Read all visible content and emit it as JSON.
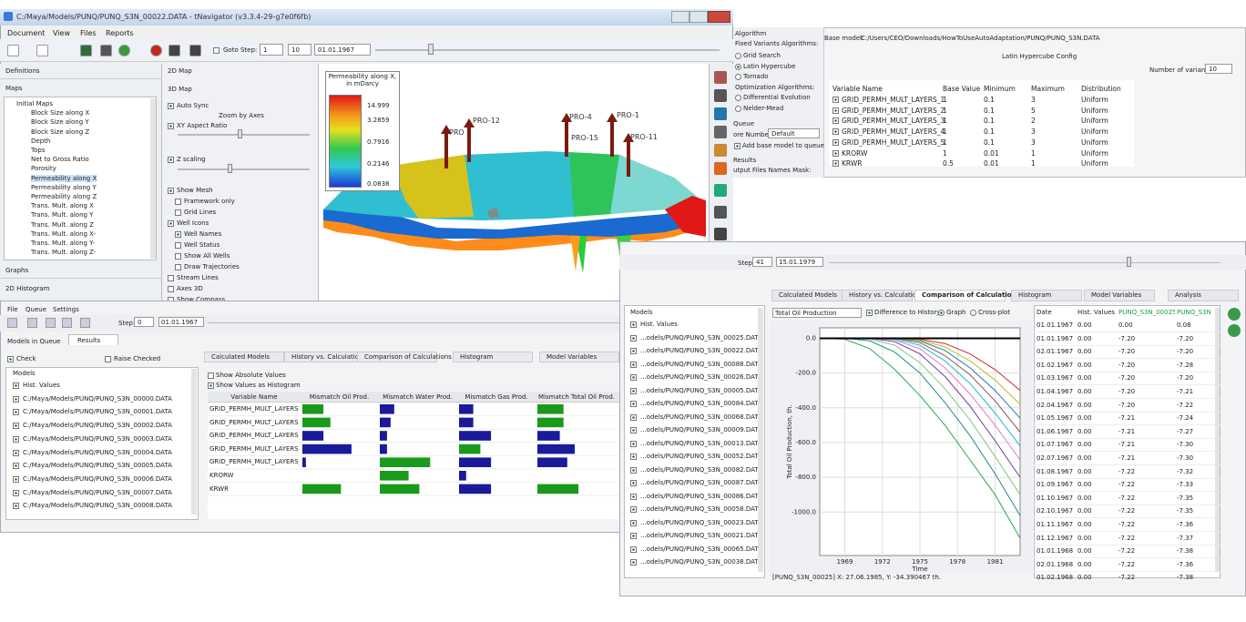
{
  "nav_window": {
    "title": "C:/Maya/Models/PUNQ/PUNQ_S3N_00022.DATA - tNavigator (v3.3.4-29-g7e0f6fb)",
    "menu": [
      "Document",
      "View",
      "Files",
      "Reports"
    ],
    "goto_step_label": "Goto Step:",
    "step": "1",
    "step_total": "10",
    "date": "01.01.1967",
    "left_tabs": [
      "Definitions",
      "Maps"
    ],
    "maps_tree": [
      "Initial Maps",
      "Block Size along X",
      "Block Size along Y",
      "Block Size along Z",
      "Depth",
      "Tops",
      "Net to Gross Ratio",
      "Porosity",
      "Permeability along X",
      "Permeability along Y",
      "Permeability along Z",
      "Trans. Mult. along X",
      "Trans. Mult. along Y",
      "Trans. Mult. along Z",
      "Trans. Mult. along X-",
      "Trans. Mult. along Y-",
      "Trans. Mult. along Z-"
    ],
    "bottom_tabs": [
      "Graphs",
      "2D Histogram"
    ],
    "mid_tabs": [
      "2D Map",
      "3D Map"
    ],
    "zoom_label": "Zoom by Axes",
    "options": [
      "Auto Sync",
      "XY Aspect Ratio",
      "Z scaling",
      "Show Mesh",
      "Framework only",
      "Grid Lines",
      "Well Icons",
      "Well Names",
      "Well Status",
      "Show All Wells",
      "Draw Trajectories",
      "Stream Lines",
      "Axes 3D",
      "Show Compass"
    ],
    "legend": {
      "title": "Permeability along X, in mDarcy",
      "ticks": [
        "14.999",
        "3.2859",
        "0.7916",
        "0.2146",
        "0.0838"
      ]
    },
    "wells": [
      "PRO",
      "PRO-12",
      "PRO-4",
      "PRO-15",
      "PRO-1",
      "PRO-11"
    ]
  },
  "config_window": {
    "algorithm": "Algorithm",
    "fixed_label": "Fixed Variants Algorithms:",
    "fixed_options": [
      "Grid Search",
      "Latin Hypercube",
      "Tornado"
    ],
    "optimization_label": "Optimization Algorithms:",
    "optimization_options": [
      "Differential Evolution",
      "Nelder-Mead"
    ],
    "queue": "Queue",
    "core_label": "ore Number:",
    "core_value": "Default",
    "add_base": "Add base model to queue",
    "results": "Results",
    "mask_label": "utput Files Names Mask:",
    "base_model_label": "Base model:",
    "base_model": "C:/Users/CEO/Downloads/HowToUseAutoAdaptation/PUNQ/PUNQ_S3N.DATA",
    "config_title": "Latin Hypercube Config",
    "variants_label": "Number of variants:",
    "variants": "10",
    "table": {
      "columns": [
        "Variable Name",
        "Base Value",
        "Minimum",
        "Maximum",
        "Distribution"
      ],
      "rows": [
        [
          "GRID_PERMH_MULT_LAYERS_1",
          "1",
          "0.1",
          "3",
          "Uniform"
        ],
        [
          "GRID_PERMH_MULT_LAYERS_2",
          "1",
          "0.1",
          "5",
          "Uniform"
        ],
        [
          "GRID_PERMH_MULT_LAYERS_3",
          "1",
          "0.1",
          "2",
          "Uniform"
        ],
        [
          "GRID_PERMH_MULT_LAYERS_4",
          "1",
          "0.1",
          "3",
          "Uniform"
        ],
        [
          "GRID_PERMH_MULT_LAYERS_5",
          "1",
          "0.1",
          "3",
          "Uniform"
        ],
        [
          "KRORW",
          "1",
          "0.01",
          "1",
          "Uniform"
        ],
        [
          "KRWR",
          "0.5",
          "0.01",
          "1",
          "Uniform"
        ]
      ]
    }
  },
  "results_window": {
    "menu": [
      "File",
      "Queue",
      "Settings"
    ],
    "step_label": "Step:",
    "step": "0",
    "date": "01.01.1967",
    "tabs": [
      "Models in Queue",
      "Results"
    ],
    "check": "Check",
    "raise_checked": "Raise Checked",
    "models_header": "Models",
    "models": [
      "Hist. Values",
      "C:/Maya/Models/PUNQ/PUNQ_S3N_00000.DATA",
      "C:/Maya/Models/PUNQ/PUNQ_S3N_00001.DATA",
      "C:/Maya/Models/PUNQ/PUNQ_S3N_00002.DATA",
      "C:/Maya/Models/PUNQ/PUNQ_S3N_00003.DATA",
      "C:/Maya/Models/PUNQ/PUNQ_S3N_00004.DATA",
      "C:/Maya/Models/PUNQ/PUNQ_S3N_00005.DATA",
      "C:/Maya/Models/PUNQ/PUNQ_S3N_00006.DATA",
      "C:/Maya/Models/PUNQ/PUNQ_S3N_00007.DATA",
      "C:/Maya/Models/PUNQ/PUNQ_S3N_00008.DATA"
    ],
    "subtabs": [
      "Calculated Models",
      "History vs. Calculations",
      "Comparison of Calculations",
      "Histogram",
      "Model Variables"
    ],
    "show_absolute": "Show Absolute Values",
    "show_histogram": "Show Values as Histogram",
    "tornado": {
      "type": "bar",
      "variable_header": "Variable Name",
      "variables": [
        "GRID_PERMH_MULT_LAYERS_1",
        "GRID_PERMH_MULT_LAYERS_2",
        "GRID_PERMH_MULT_LAYERS_3",
        "GRID_PERMH_MULT_LAYERS_4",
        "GRID_PERMH_MULT_LAYERS_5",
        "KRORW",
        "KRWR"
      ],
      "xlim": [
        0,
        1
      ],
      "columns": [
        {
          "name": "Mismatch Oil Prod.",
          "values": [
            0.3,
            0.4,
            0.3,
            0.7,
            0.05,
            0,
            0.55
          ],
          "colors": [
            "#1a9a1a",
            "#1a9a1a",
            "#1a1a9a",
            "#1a1a9a",
            "#1a1a9a",
            "#1a1a9a",
            "#1a9a1a"
          ]
        },
        {
          "name": "Mismatch Water Prod.",
          "values": [
            0.2,
            0.15,
            0.1,
            0.1,
            0.7,
            0.4,
            0.55
          ],
          "colors": [
            "#1a1a9a",
            "#1a1a9a",
            "#1a1a9a",
            "#1a1a9a",
            "#1a9a1a",
            "#1a9a1a",
            "#1a9a1a"
          ]
        },
        {
          "name": "Mismatch Gas Prod.",
          "values": [
            0.2,
            0.2,
            0.45,
            0.3,
            0.45,
            0.1,
            0.45
          ],
          "colors": [
            "#1a1a9a",
            "#1a1a9a",
            "#1a1a9a",
            "#1a9a1a",
            "#1a1a9a",
            "#1a1a9a",
            "#1a1a9a"
          ]
        },
        {
          "name": "Mismatch Total Oil Prod.",
          "values": [
            0.35,
            0.35,
            0.3,
            0.5,
            0.4,
            0,
            0.55
          ],
          "colors": [
            "#1a9a1a",
            "#1a9a1a",
            "#1a1a9a",
            "#1a1a9a",
            "#1a1a9a",
            "#1a1a9a",
            "#1a9a1a"
          ]
        }
      ]
    }
  },
  "comparison_window": {
    "step_label": "Step:",
    "step": "41",
    "date": "15.01.1979",
    "tabs": [
      "Calculated Models",
      "History vs. Calculations",
      "Comparison of Calculations",
      "Histogram",
      "Model Variables",
      "Analysis"
    ],
    "models_header": "Models",
    "models": [
      "Hist. Values",
      "...odels/PUNQ/PUNQ_S3N_00025.DATA",
      "...odels/PUNQ/PUNQ_S3N_00022.DATA",
      "...odels/PUNQ/PUNQ_S3N_00088.DATA",
      "...odels/PUNQ/PUNQ_S3N_00026.DATA",
      "...odels/PUNQ/PUNQ_S3N_00005.DATA",
      "...odels/PUNQ/PUNQ_S3N_00084.DATA",
      "...odels/PUNQ/PUNQ_S3N_00068.DATA",
      "...odels/PUNQ/PUNQ_S3N_00009.DATA",
      "...odels/PUNQ/PUNQ_S3N_00013.DATA",
      "...odels/PUNQ/PUNQ_S3N_00052.DATA",
      "...odels/PUNQ/PUNQ_S3N_00082.DATA",
      "...odels/PUNQ/PUNQ_S3N_00087.DATA",
      "...odels/PUNQ/PUNQ_S3N_00086.DATA",
      "...odels/PUNQ/PUNQ_S3N_00058.DATA",
      "...odels/PUNQ/PUNQ_S3N_00023.DATA",
      "...odels/PUNQ/PUNQ_S3N_00021.DATA",
      "...odels/PUNQ/PUNQ_S3N_00065.DATA",
      "...odels/PUNQ/PUNQ_S3N_00038.DATA"
    ],
    "property": "Total Oil Production",
    "difference": "Difference to History",
    "graph": "Graph",
    "crossplot": "Cross-plot",
    "status": "[PUNQ_S3N_00025] X: 27.06.1985, Y: -34.390467 th.",
    "chart": {
      "type": "line",
      "y_label": "Total Oil Production, th.",
      "x_label": "Time",
      "x": [
        1967,
        1969,
        1971,
        1973,
        1975,
        1977,
        1979,
        1981,
        1983
      ],
      "xlim": [
        1967,
        1983
      ],
      "xticks": [
        1969,
        1972,
        1975,
        1978,
        1981
      ],
      "ylim": [
        -1250,
        60
      ],
      "yticks": [
        {
          "value": 0,
          "label": "0.0"
        },
        {
          "value": -200,
          "label": "-200.0"
        },
        {
          "value": -400,
          "label": "-400.0"
        },
        {
          "value": -600,
          "label": "-600.0"
        },
        {
          "value": -800,
          "label": "-800.0"
        },
        {
          "value": -1000,
          "label": "-1000.0"
        }
      ],
      "grid": true,
      "series": [
        {
          "color": "#000000",
          "values": [
            0,
            0,
            0,
            0,
            0,
            0,
            0,
            0,
            0
          ]
        },
        {
          "color": "#2aa84a",
          "values": [
            0,
            -5,
            -60,
            -180,
            -330,
            -500,
            -700,
            -900,
            -1150
          ]
        },
        {
          "color": "#1f8c8c",
          "values": [
            0,
            0,
            -15,
            -80,
            -200,
            -370,
            -560,
            -780,
            -1020
          ]
        },
        {
          "color": "#7fc97f",
          "values": [
            0,
            0,
            -5,
            -40,
            -140,
            -290,
            -470,
            -680,
            -900
          ]
        },
        {
          "color": "#6a3d9a",
          "values": [
            0,
            0,
            0,
            -20,
            -90,
            -220,
            -390,
            -590,
            -800
          ]
        },
        {
          "color": "#e377c2",
          "values": [
            0,
            0,
            0,
            -10,
            -60,
            -170,
            -320,
            -500,
            -700
          ]
        },
        {
          "color": "#17becf",
          "values": [
            0,
            0,
            0,
            -5,
            -40,
            -130,
            -260,
            -430,
            -620
          ]
        },
        {
          "color": "#8c564b",
          "values": [
            0,
            0,
            0,
            0,
            -25,
            -100,
            -210,
            -360,
            -540
          ]
        },
        {
          "color": "#1f77b4",
          "values": [
            0,
            0,
            0,
            0,
            -15,
            -70,
            -170,
            -300,
            -460
          ]
        },
        {
          "color": "#bcbd22",
          "values": [
            0,
            0,
            0,
            0,
            -10,
            -50,
            -130,
            -240,
            -380
          ]
        },
        {
          "color": "#d62728",
          "values": [
            0,
            0,
            0,
            0,
            -5,
            -30,
            -90,
            -180,
            -300
          ]
        }
      ]
    },
    "table": {
      "columns": [
        "Date",
        "Hist. Values",
        "PUNQ_S3N_00025",
        "PUNQ_S3N"
      ],
      "rows": [
        [
          "01.01.1967",
          "0.00",
          "0.00",
          "0.08"
        ],
        [
          "01.01.1967",
          "0.00",
          "-7.20",
          "-7.20"
        ],
        [
          "02.01.1967",
          "0.00",
          "-7.20",
          "-7.20"
        ],
        [
          "01.02.1967",
          "0.00",
          "-7.20",
          "-7.28"
        ],
        [
          "01.03.1967",
          "0.00",
          "-7.20",
          "-7.20"
        ],
        [
          "01.04.1967",
          "0.00",
          "-7.20",
          "-7.21"
        ],
        [
          "02.04.1967",
          "0.00",
          "-7.20",
          "-7.22"
        ],
        [
          "01.05.1967",
          "0.00",
          "-7.21",
          "-7.24"
        ],
        [
          "01.06.1967",
          "0.00",
          "-7.21",
          "-7.27"
        ],
        [
          "01.07.1967",
          "0.00",
          "-7.21",
          "-7.30"
        ],
        [
          "02.07.1967",
          "0.00",
          "-7.21",
          "-7.30"
        ],
        [
          "01.08.1967",
          "0.00",
          "-7.22",
          "-7.32"
        ],
        [
          "01.09.1967",
          "0.00",
          "-7.22",
          "-7.33"
        ],
        [
          "01.10.1967",
          "0.00",
          "-7.22",
          "-7.35"
        ],
        [
          "02.10.1967",
          "0.00",
          "-7.22",
          "-7.35"
        ],
        [
          "01.11.1967",
          "0.00",
          "-7.22",
          "-7.36"
        ],
        [
          "01.12.1967",
          "0.00",
          "-7.22",
          "-7.37"
        ],
        [
          "01.01.1968",
          "0.00",
          "-7.22",
          "-7.38"
        ],
        [
          "02.01.1968",
          "0.00",
          "-7.22",
          "-7.36"
        ],
        [
          "01.02.1968",
          "0.00",
          "-7.22",
          "-7.38"
        ]
      ]
    }
  }
}
